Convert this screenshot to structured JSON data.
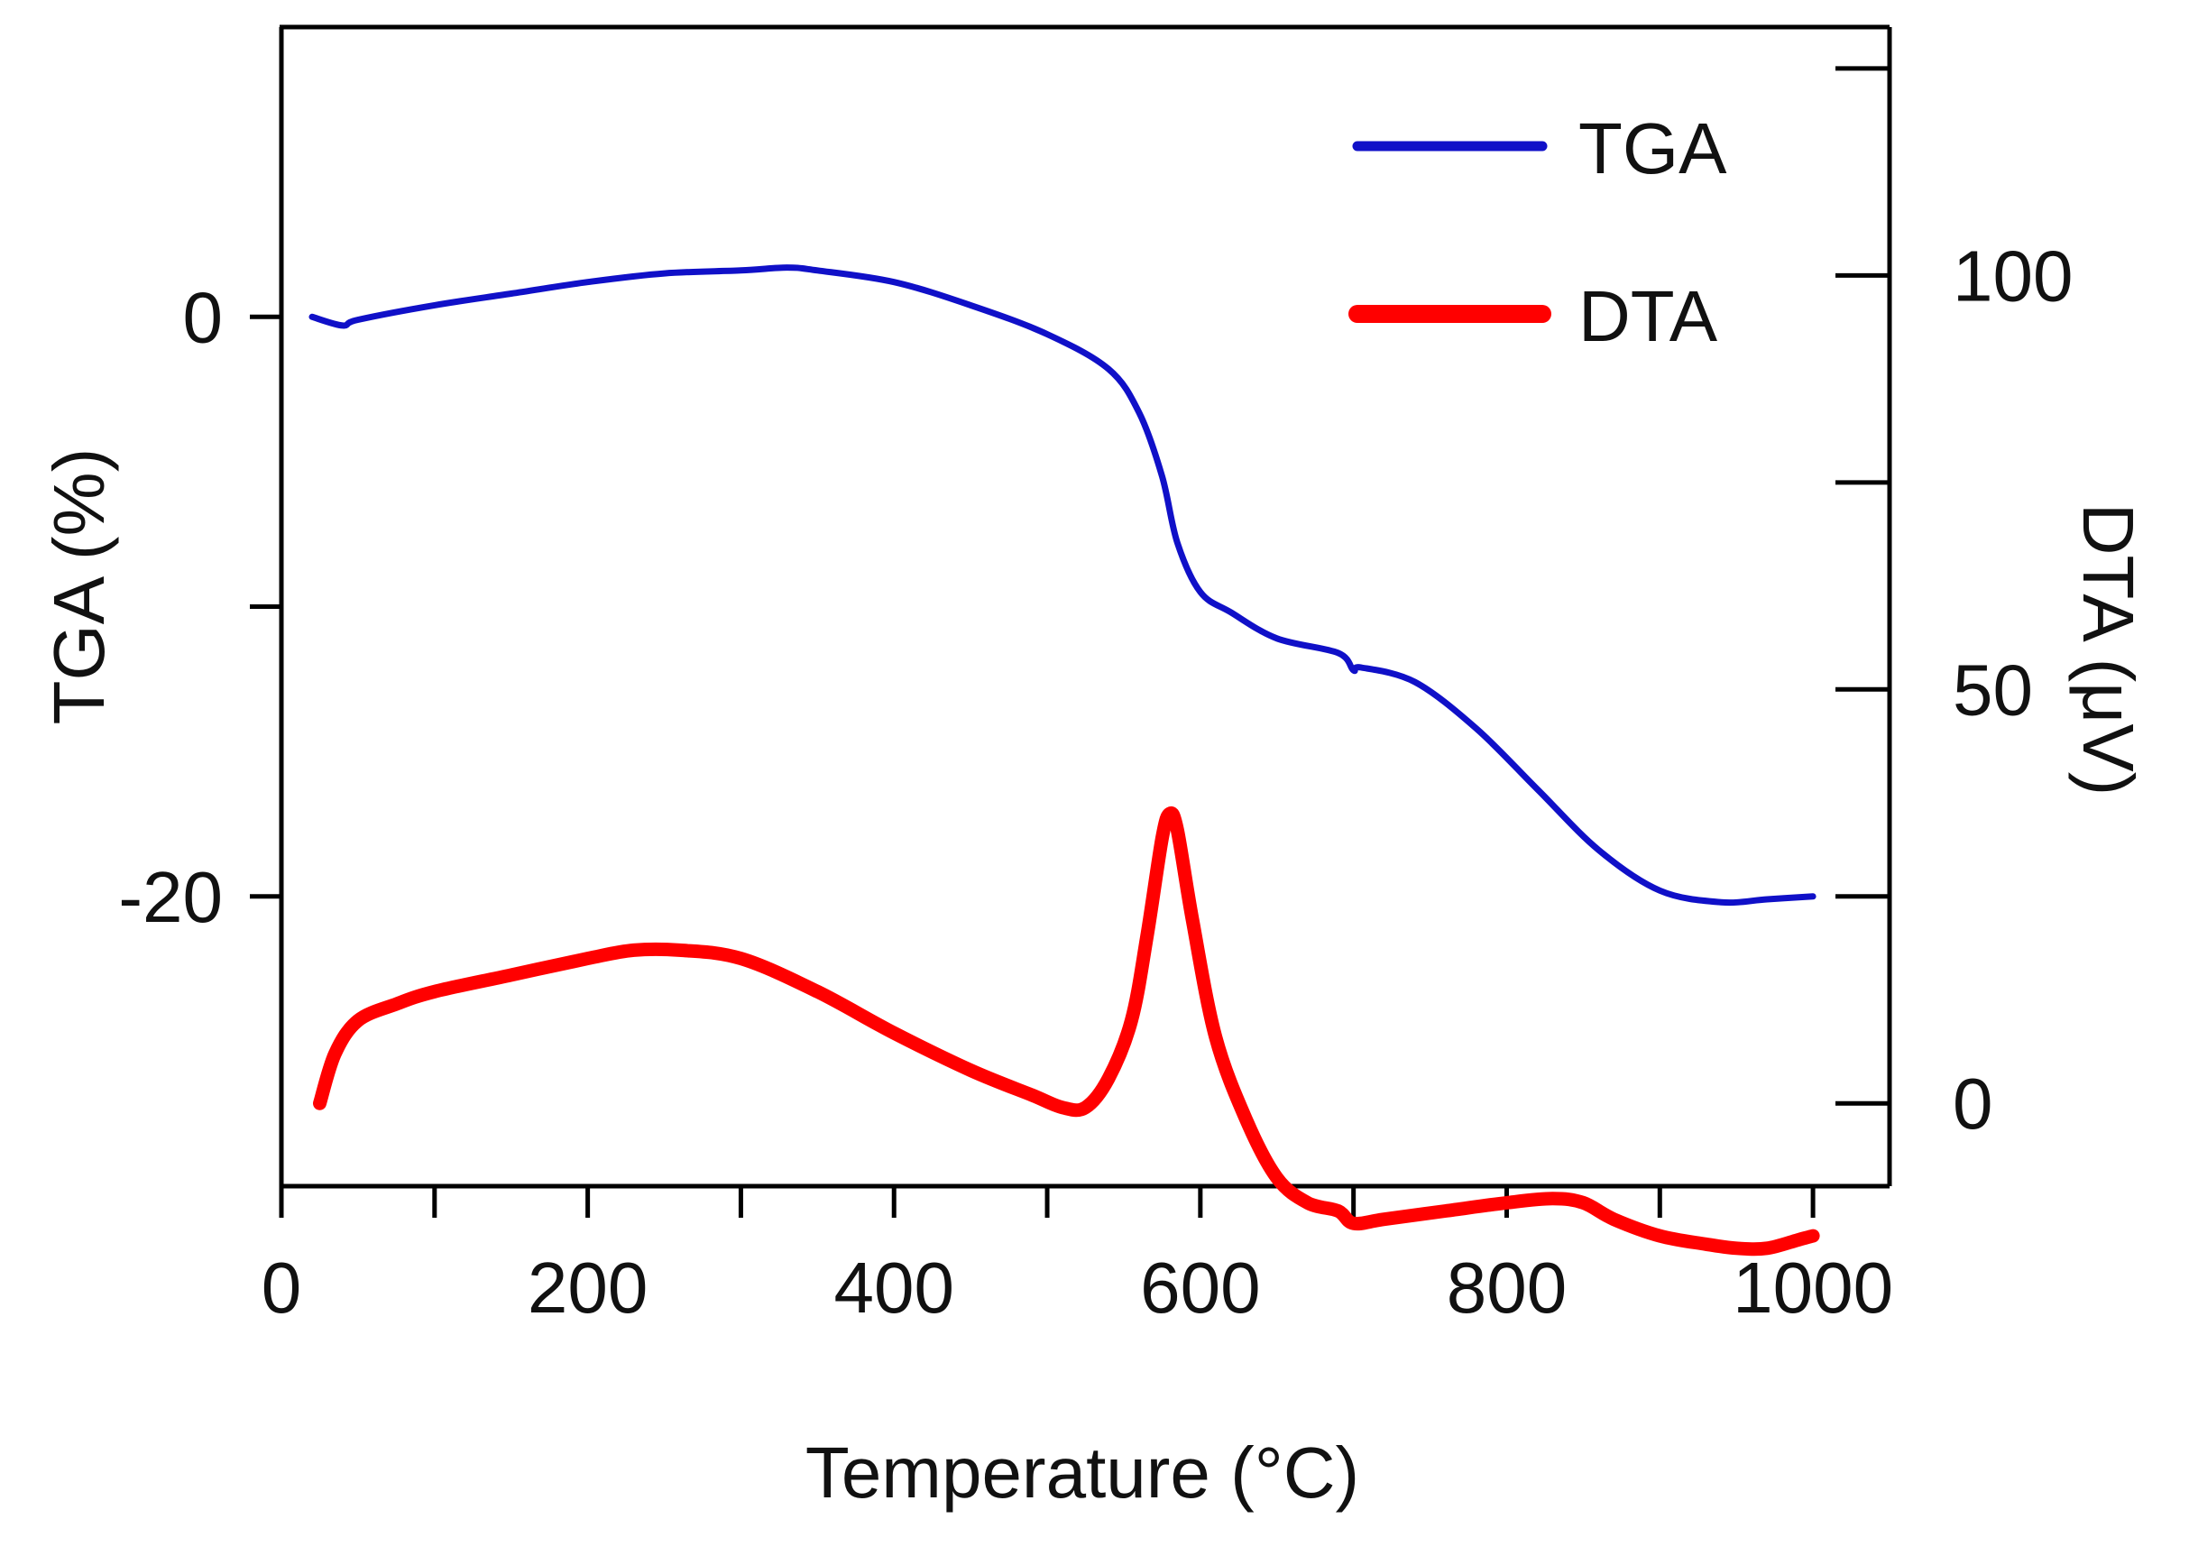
{
  "chart_data": {
    "type": "line",
    "xlabel": "Temperature (°C)",
    "ylabel_left": "TGA (%)",
    "ylabel_right": "DTA (μV)",
    "xlim": [
      0,
      1050
    ],
    "ylim_left": [
      -30,
      10
    ],
    "ylim_right": [
      -10,
      130
    ],
    "x_ticks": [
      0,
      100,
      200,
      300,
      400,
      500,
      600,
      700,
      800,
      900,
      1000
    ],
    "x_tick_labels": [
      "0",
      "200",
      "400",
      "600",
      "800",
      "1000"
    ],
    "y_left_ticks": [
      0,
      -10,
      -20
    ],
    "y_left_tick_labels": [
      "0",
      "-20"
    ],
    "y_right_ticks": [
      0,
      25,
      50,
      75,
      100,
      125
    ],
    "y_right_tick_labels": [
      "0",
      "50",
      "100"
    ],
    "legend_position": "top-right",
    "grid": false,
    "series": [
      {
        "name": "TGA",
        "axis": "left",
        "color": "#1010c8",
        "x": [
          20,
          40,
          50,
          100,
          150,
          200,
          250,
          300,
          330,
          350,
          400,
          450,
          500,
          540,
          560,
          575,
          585,
          600,
          620,
          650,
          690,
          700,
          705,
          740,
          780,
          820,
          860,
          900,
          940,
          970,
          1000
        ],
        "y": [
          0,
          -0.3,
          -0.1,
          0.4,
          0.8,
          1.2,
          1.5,
          1.6,
          1.7,
          1.6,
          1.2,
          0.4,
          -0.6,
          -1.8,
          -3.3,
          -5.5,
          -7.8,
          -9.5,
          -10.2,
          -11.1,
          -11.6,
          -12.2,
          -12.1,
          -12.6,
          -14.2,
          -16.3,
          -18.4,
          -19.8,
          -20.2,
          -20.1,
          -20.0
        ]
      },
      {
        "name": "DTA",
        "axis": "right",
        "color": "#ff0000",
        "x": [
          25,
          35,
          50,
          75,
          100,
          150,
          200,
          230,
          260,
          300,
          350,
          400,
          450,
          490,
          510,
          525,
          540,
          555,
          565,
          575,
          580,
          585,
          595,
          610,
          630,
          650,
          670,
          690,
          700,
          720,
          760,
          800,
          830,
          850,
          870,
          900,
          930,
          950,
          970,
          990,
          1000
        ],
        "y": [
          0,
          6,
          10,
          12,
          13.5,
          15.5,
          17.5,
          18.5,
          18.5,
          17.5,
          13.5,
          8.5,
          4,
          1,
          -0.5,
          -0.5,
          3,
          10,
          20,
          32,
          35,
          33,
          22,
          8,
          -2,
          -9,
          -12,
          -13,
          -14.5,
          -14,
          -13,
          -12,
          -11.5,
          -12,
          -14,
          -16,
          -17,
          -17.5,
          -17.5,
          -16.5,
          -16
        ]
      }
    ]
  }
}
